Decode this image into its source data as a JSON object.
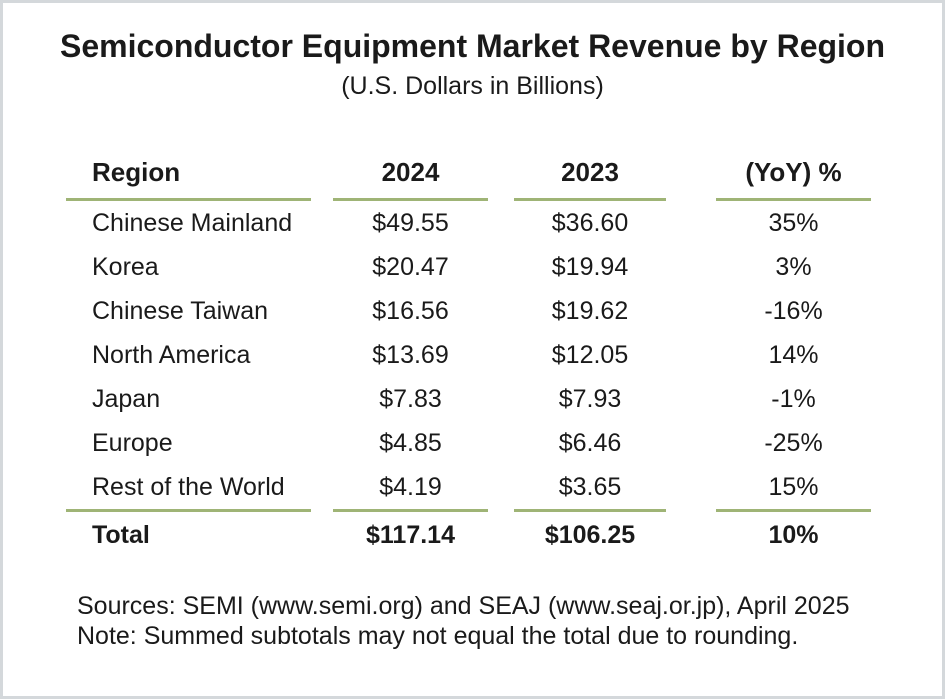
{
  "page": {
    "title": "Semiconductor Equipment Market Revenue by Region",
    "subtitle": "(U.S. Dollars in Billions)"
  },
  "table": {
    "headers": {
      "region": "Region",
      "y2024": "2024",
      "y2023": "2023",
      "yoy": "(YoY) %"
    },
    "rows": [
      {
        "region": "Chinese Mainland",
        "y2024": "$49.55",
        "y2023": "$36.60",
        "yoy": "35%"
      },
      {
        "region": "Korea",
        "y2024": "$20.47",
        "y2023": "$19.94",
        "yoy": "3%"
      },
      {
        "region": "Chinese Taiwan",
        "y2024": "$16.56",
        "y2023": "$19.62",
        "yoy": "-16%"
      },
      {
        "region": "North America",
        "y2024": "$13.69",
        "y2023": "$12.05",
        "yoy": "14%"
      },
      {
        "region": "Japan",
        "y2024": "$7.83",
        "y2023": "$7.93",
        "yoy": "-1%"
      },
      {
        "region": "Europe",
        "y2024": "$4.85",
        "y2023": "$6.46",
        "yoy": "-25%"
      },
      {
        "region": "Rest of the World",
        "y2024": "$4.19",
        "y2023": "$3.65",
        "yoy": "15%"
      }
    ],
    "total": {
      "region": "Total",
      "y2024": "$117.14",
      "y2023": "$106.25",
      "yoy": "10%"
    }
  },
  "footer": {
    "sources": "Sources: SEMI (www.semi.org) and SEAJ (www.seaj.or.jp), April 2025",
    "note": "Note: Summed subtotals may not equal the total due to rounding."
  },
  "colors": {
    "rule_green": "#9fb476",
    "page_border_gray": "#d4d8db",
    "text": "#1a1a1a"
  },
  "chart_data": {
    "type": "table",
    "title": "Semiconductor Equipment Market Revenue by Region",
    "subtitle": "(U.S. Dollars in Billions)",
    "units": "U.S. Dollars in Billions",
    "columns": [
      "Region",
      "2024",
      "2023",
      "(YoY) %"
    ],
    "rows": [
      [
        "Chinese Mainland",
        49.55,
        36.6,
        "35%"
      ],
      [
        "Korea",
        20.47,
        19.94,
        "3%"
      ],
      [
        "Chinese Taiwan",
        16.56,
        19.62,
        "-16%"
      ],
      [
        "North America",
        13.69,
        12.05,
        "14%"
      ],
      [
        "Japan",
        7.83,
        7.93,
        "-1%"
      ],
      [
        "Europe",
        4.85,
        6.46,
        "-25%"
      ],
      [
        "Rest of the World",
        4.19,
        3.65,
        "15%"
      ]
    ],
    "total_row": [
      "Total",
      117.14,
      106.25,
      "10%"
    ],
    "sources": "SEMI (www.semi.org) and SEAJ (www.seaj.or.jp), April 2025",
    "note": "Summed subtotals may not equal the total due to rounding."
  }
}
